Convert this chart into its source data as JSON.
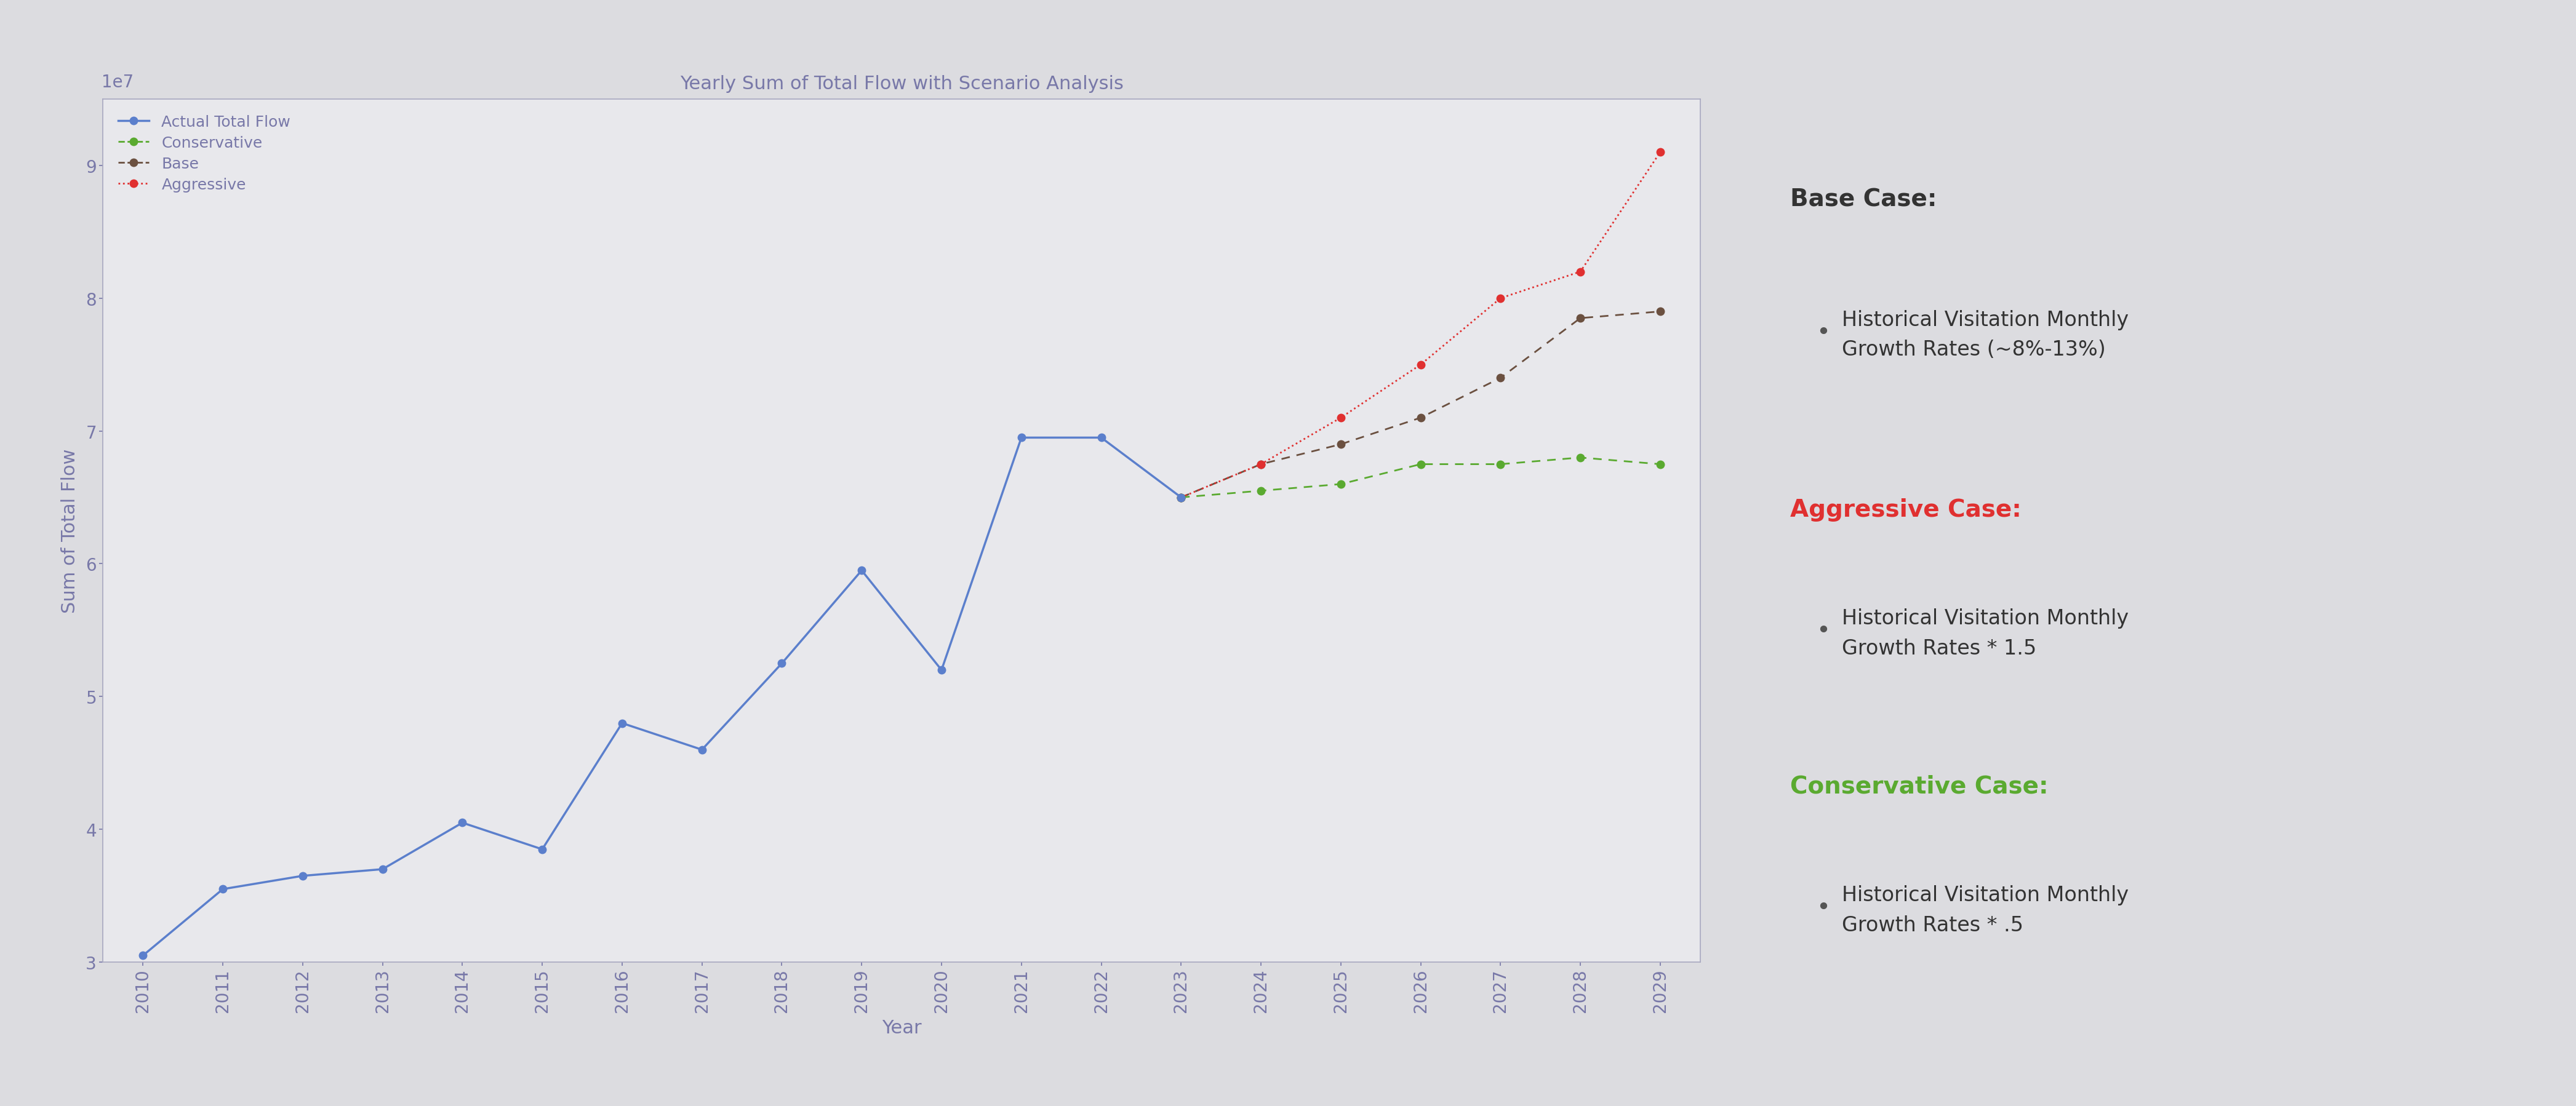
{
  "title": "Yearly Sum of Total Flow with Scenario Analysis",
  "xlabel": "Year",
  "ylabel": "Sum of Total Flow",
  "bg_color": "#dcdce0",
  "plot_bg_color": "#e8e8ec",
  "actual_years": [
    2010,
    2011,
    2012,
    2013,
    2014,
    2015,
    2016,
    2017,
    2018,
    2019,
    2020,
    2021,
    2022,
    2023
  ],
  "actual_values": [
    30500000.0,
    35500000.0,
    36500000.0,
    37000000.0,
    40500000.0,
    38500000.0,
    48000000.0,
    46000000.0,
    52500000.0,
    59500000.0,
    52000000.0,
    69500000.0,
    69500000.0,
    65000000.0
  ],
  "base_years": [
    2023,
    2024,
    2025,
    2026,
    2027,
    2028,
    2029
  ],
  "base_values": [
    65000000.0,
    67500000.0,
    69000000.0,
    71000000.0,
    74000000.0,
    78500000.0,
    79000000.0
  ],
  "aggressive_years": [
    2023,
    2024,
    2025,
    2026,
    2027,
    2028,
    2029
  ],
  "aggressive_values": [
    65000000.0,
    67500000.0,
    71000000.0,
    75000000.0,
    80000000.0,
    82000000.0,
    91000000.0
  ],
  "conservative_years": [
    2023,
    2024,
    2025,
    2026,
    2027,
    2028,
    2029
  ],
  "conservative_values": [
    65000000.0,
    65500000.0,
    66000000.0,
    67500000.0,
    67500000.0,
    68000000.0,
    67500000.0
  ],
  "actual_color": "#5b7fcc",
  "base_color": "#6b5040",
  "aggressive_color": "#e03030",
  "conservative_color": "#5aaa30",
  "text_color": "#7878a8",
  "ylim": [
    30000000.0,
    95000000.0
  ],
  "yticks": [
    30000000.0,
    40000000.0,
    50000000.0,
    60000000.0,
    70000000.0,
    80000000.0,
    90000000.0
  ],
  "base_case_title": "Base Case:",
  "base_case_text": "Historical Visitation Monthly\nGrowth Rates (~8%-13%)",
  "aggressive_case_title": "Aggressive Case:",
  "aggressive_case_text": "Historical Visitation Monthly\nGrowth Rates * 1.5",
  "conservative_case_title": "Conservative Case:",
  "conservative_case_text": "Historical Visitation Monthly\nGrowth Rates * .5",
  "bullet_color": "#555555"
}
